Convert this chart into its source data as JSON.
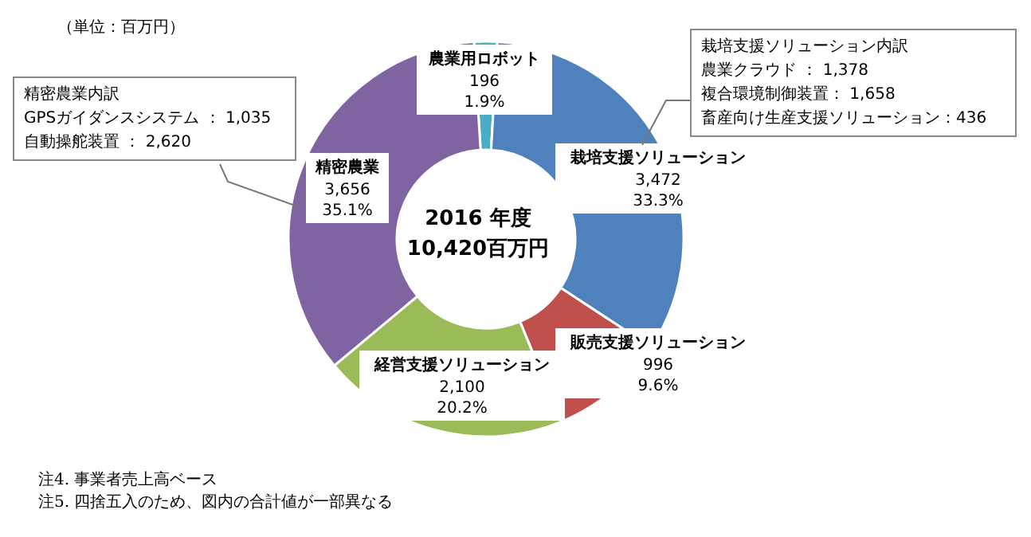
{
  "chart_data": {
    "type": "donut",
    "categories": [
      "農業用ロボット",
      "栽培支援ソリューション",
      "販売支援ソリューション",
      "経営支援ソリューション",
      "精密農業"
    ],
    "values": [
      196,
      3472,
      996,
      2100,
      3656
    ],
    "colors": [
      "#4bacc6",
      "#4f81bd",
      "#c0504d",
      "#9bbb59",
      "#8064a2"
    ],
    "value_labels": [
      "196\n1.9%",
      "3,472\n33.3%",
      "996\n9.6%",
      "2,100\n20.2%",
      "3,656\n35.1%"
    ],
    "legend": false,
    "annotations": [
      "（単位：百万円）",
      "精密農業内訳",
      "GPSガイダンスシステム ： 1,035",
      "自動操舵装置 ： 2,620",
      "栽培支援ソリューション内訳",
      "農業クラウド ： 1,378",
      "複合環境制御装置： 1,658",
      "畜産向け生産支援ソリューション：436",
      "2016 年度",
      "10,420百万円",
      "注4. 事業者売上高ベース",
      "注5. 四捨五入のため、図内の合計値が一部異なる"
    ]
  }
}
